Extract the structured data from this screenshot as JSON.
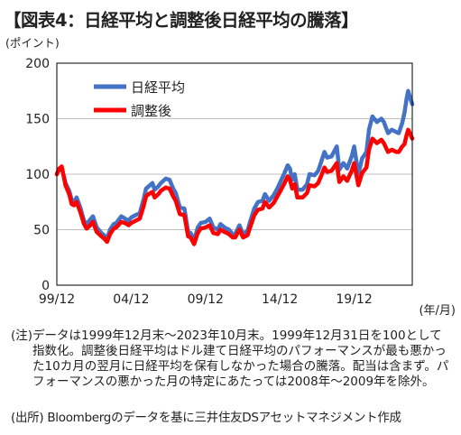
{
  "title": "【図表4：日経平均と調整後日経平均の騰落】",
  "note_head": "(注)",
  "note_body": "データは1999年12月末〜2023年10月末。1999年12月31日を100として指数化。調整後日経平均はドル建て日経平均のパフォーマンスが最も悪かった10カ月の翌月に日経平均を保有しなかった場合の騰落。配当は含まず。パフォーマンスの悪かった月の特定にあたっては2008年〜2009年を除外。",
  "source": "(出所) Bloombergのデータを基に三井住友DSアセットマネジメント作成",
  "chart_data": {
    "type": "line",
    "ylabel": "(ポイント)",
    "xlabel": "(年/月)",
    "ylim": [
      0,
      200
    ],
    "yticks": [
      "0",
      "50",
      "100",
      "150",
      "200"
    ],
    "xlim": [
      1999.92,
      2023.83
    ],
    "xticks": [
      {
        "x": 1999.92,
        "label": "99/12"
      },
      {
        "x": 2004.92,
        "label": "04/12"
      },
      {
        "x": 2009.92,
        "label": "09/12"
      },
      {
        "x": 2014.92,
        "label": "14/12"
      },
      {
        "x": 2019.92,
        "label": "19/12"
      }
    ],
    "legend_position": "top-left",
    "series": [
      {
        "name": "日経平均",
        "color": "#4472c4",
        "points": [
          [
            1999.92,
            100
          ],
          [
            2000.08,
            104
          ],
          [
            2000.25,
            106
          ],
          [
            2000.5,
            92
          ],
          [
            2000.75,
            85
          ],
          [
            2000.92,
            77
          ],
          [
            2001.08,
            75
          ],
          [
            2001.25,
            79
          ],
          [
            2001.5,
            70
          ],
          [
            2001.75,
            58
          ],
          [
            2001.92,
            55
          ],
          [
            2002.1,
            58
          ],
          [
            2002.35,
            62
          ],
          [
            2002.6,
            52
          ],
          [
            2002.92,
            47
          ],
          [
            2003.1,
            45
          ],
          [
            2003.3,
            42
          ],
          [
            2003.5,
            50
          ],
          [
            2003.75,
            55
          ],
          [
            2003.92,
            56
          ],
          [
            2004.25,
            62
          ],
          [
            2004.5,
            60
          ],
          [
            2004.75,
            58
          ],
          [
            2004.92,
            61
          ],
          [
            2005.2,
            63
          ],
          [
            2005.5,
            65
          ],
          [
            2005.75,
            77
          ],
          [
            2005.92,
            87
          ],
          [
            2006.1,
            89
          ],
          [
            2006.35,
            92
          ],
          [
            2006.5,
            86
          ],
          [
            2006.75,
            89
          ],
          [
            2006.92,
            92
          ],
          [
            2007.25,
            96
          ],
          [
            2007.5,
            95
          ],
          [
            2007.75,
            87
          ],
          [
            2007.92,
            83
          ],
          [
            2008.2,
            70
          ],
          [
            2008.5,
            69
          ],
          [
            2008.75,
            48
          ],
          [
            2008.92,
            47
          ],
          [
            2009.15,
            40
          ],
          [
            2009.4,
            52
          ],
          [
            2009.6,
            56
          ],
          [
            2009.92,
            57
          ],
          [
            2010.2,
            60
          ],
          [
            2010.45,
            52
          ],
          [
            2010.75,
            50
          ],
          [
            2010.92,
            55
          ],
          [
            2011.2,
            52
          ],
          [
            2011.5,
            50
          ],
          [
            2011.75,
            46
          ],
          [
            2011.92,
            46
          ],
          [
            2012.2,
            54
          ],
          [
            2012.45,
            46
          ],
          [
            2012.75,
            49
          ],
          [
            2012.92,
            57
          ],
          [
            2013.2,
            69
          ],
          [
            2013.45,
            75
          ],
          [
            2013.75,
            76
          ],
          [
            2013.92,
            82
          ],
          [
            2014.2,
            76
          ],
          [
            2014.5,
            81
          ],
          [
            2014.75,
            87
          ],
          [
            2014.92,
            92
          ],
          [
            2015.2,
            100
          ],
          [
            2015.45,
            108
          ],
          [
            2015.6,
            105
          ],
          [
            2015.75,
            95
          ],
          [
            2015.92,
            100
          ],
          [
            2016.1,
            86
          ],
          [
            2016.45,
            86
          ],
          [
            2016.75,
            91
          ],
          [
            2016.92,
            100
          ],
          [
            2017.25,
            99
          ],
          [
            2017.5,
            103
          ],
          [
            2017.75,
            113
          ],
          [
            2017.92,
            120
          ],
          [
            2018.1,
            115
          ],
          [
            2018.4,
            116
          ],
          [
            2018.75,
            125
          ],
          [
            2018.92,
            104
          ],
          [
            2019.2,
            110
          ],
          [
            2019.45,
            105
          ],
          [
            2019.75,
            116
          ],
          [
            2019.92,
            125
          ],
          [
            2020.2,
            100
          ],
          [
            2020.45,
            114
          ],
          [
            2020.75,
            120
          ],
          [
            2020.92,
            140
          ],
          [
            2021.15,
            152
          ],
          [
            2021.45,
            147
          ],
          [
            2021.75,
            150
          ],
          [
            2021.92,
            147
          ],
          [
            2022.2,
            137
          ],
          [
            2022.45,
            140
          ],
          [
            2022.75,
            138
          ],
          [
            2022.92,
            137
          ],
          [
            2023.15,
            146
          ],
          [
            2023.3,
            155
          ],
          [
            2023.45,
            168
          ],
          [
            2023.55,
            175
          ],
          [
            2023.7,
            168
          ],
          [
            2023.83,
            163
          ]
        ]
      },
      {
        "name": "調整後",
        "color": "#ff0000",
        "points": [
          [
            1999.92,
            100
          ],
          [
            2000.08,
            105
          ],
          [
            2000.25,
            107
          ],
          [
            2000.5,
            90
          ],
          [
            2000.75,
            82
          ],
          [
            2000.92,
            73
          ],
          [
            2001.08,
            72
          ],
          [
            2001.25,
            75
          ],
          [
            2001.5,
            66
          ],
          [
            2001.75,
            55
          ],
          [
            2001.92,
            51
          ],
          [
            2002.1,
            53
          ],
          [
            2002.35,
            57
          ],
          [
            2002.6,
            48
          ],
          [
            2002.92,
            44
          ],
          [
            2003.1,
            42
          ],
          [
            2003.3,
            39
          ],
          [
            2003.5,
            46
          ],
          [
            2003.75,
            51
          ],
          [
            2003.92,
            52
          ],
          [
            2004.25,
            57
          ],
          [
            2004.5,
            56
          ],
          [
            2004.75,
            54
          ],
          [
            2004.92,
            56
          ],
          [
            2005.2,
            58
          ],
          [
            2005.5,
            60
          ],
          [
            2005.75,
            71
          ],
          [
            2005.92,
            80
          ],
          [
            2006.1,
            82
          ],
          [
            2006.35,
            84
          ],
          [
            2006.5,
            79
          ],
          [
            2006.75,
            82
          ],
          [
            2006.92,
            85
          ],
          [
            2007.25,
            88
          ],
          [
            2007.5,
            87
          ],
          [
            2007.75,
            80
          ],
          [
            2007.92,
            76
          ],
          [
            2008.2,
            64
          ],
          [
            2008.5,
            63
          ],
          [
            2008.75,
            44
          ],
          [
            2008.92,
            43
          ],
          [
            2009.15,
            37
          ],
          [
            2009.4,
            47
          ],
          [
            2009.6,
            51
          ],
          [
            2009.92,
            52
          ],
          [
            2010.2,
            54
          ],
          [
            2010.45,
            47
          ],
          [
            2010.75,
            46
          ],
          [
            2010.92,
            50
          ],
          [
            2011.2,
            48
          ],
          [
            2011.5,
            46
          ],
          [
            2011.75,
            43
          ],
          [
            2011.92,
            43
          ],
          [
            2012.2,
            50
          ],
          [
            2012.45,
            43
          ],
          [
            2012.75,
            45
          ],
          [
            2012.92,
            52
          ],
          [
            2013.2,
            63
          ],
          [
            2013.45,
            68
          ],
          [
            2013.75,
            69
          ],
          [
            2013.92,
            75
          ],
          [
            2014.2,
            70
          ],
          [
            2014.5,
            74
          ],
          [
            2014.75,
            80
          ],
          [
            2014.92,
            84
          ],
          [
            2015.2,
            91
          ],
          [
            2015.45,
            98
          ],
          [
            2015.6,
            95
          ],
          [
            2015.75,
            87
          ],
          [
            2015.92,
            91
          ],
          [
            2016.1,
            79
          ],
          [
            2016.45,
            79
          ],
          [
            2016.75,
            83
          ],
          [
            2016.92,
            90
          ],
          [
            2017.25,
            89
          ],
          [
            2017.5,
            92
          ],
          [
            2017.75,
            100
          ],
          [
            2017.92,
            106
          ],
          [
            2018.1,
            102
          ],
          [
            2018.4,
            103
          ],
          [
            2018.75,
            110
          ],
          [
            2018.92,
            93
          ],
          [
            2019.2,
            98
          ],
          [
            2019.45,
            94
          ],
          [
            2019.75,
            103
          ],
          [
            2019.92,
            110
          ],
          [
            2020.2,
            90
          ],
          [
            2020.45,
            101
          ],
          [
            2020.75,
            106
          ],
          [
            2020.92,
            122
          ],
          [
            2021.15,
            132
          ],
          [
            2021.45,
            128
          ],
          [
            2021.75,
            131
          ],
          [
            2021.92,
            128
          ],
          [
            2022.2,
            120
          ],
          [
            2022.45,
            122
          ],
          [
            2022.75,
            120
          ],
          [
            2022.92,
            120
          ],
          [
            2023.15,
            125
          ],
          [
            2023.3,
            127
          ],
          [
            2023.45,
            135
          ],
          [
            2023.55,
            140
          ],
          [
            2023.7,
            136
          ],
          [
            2023.83,
            132
          ]
        ]
      }
    ]
  }
}
